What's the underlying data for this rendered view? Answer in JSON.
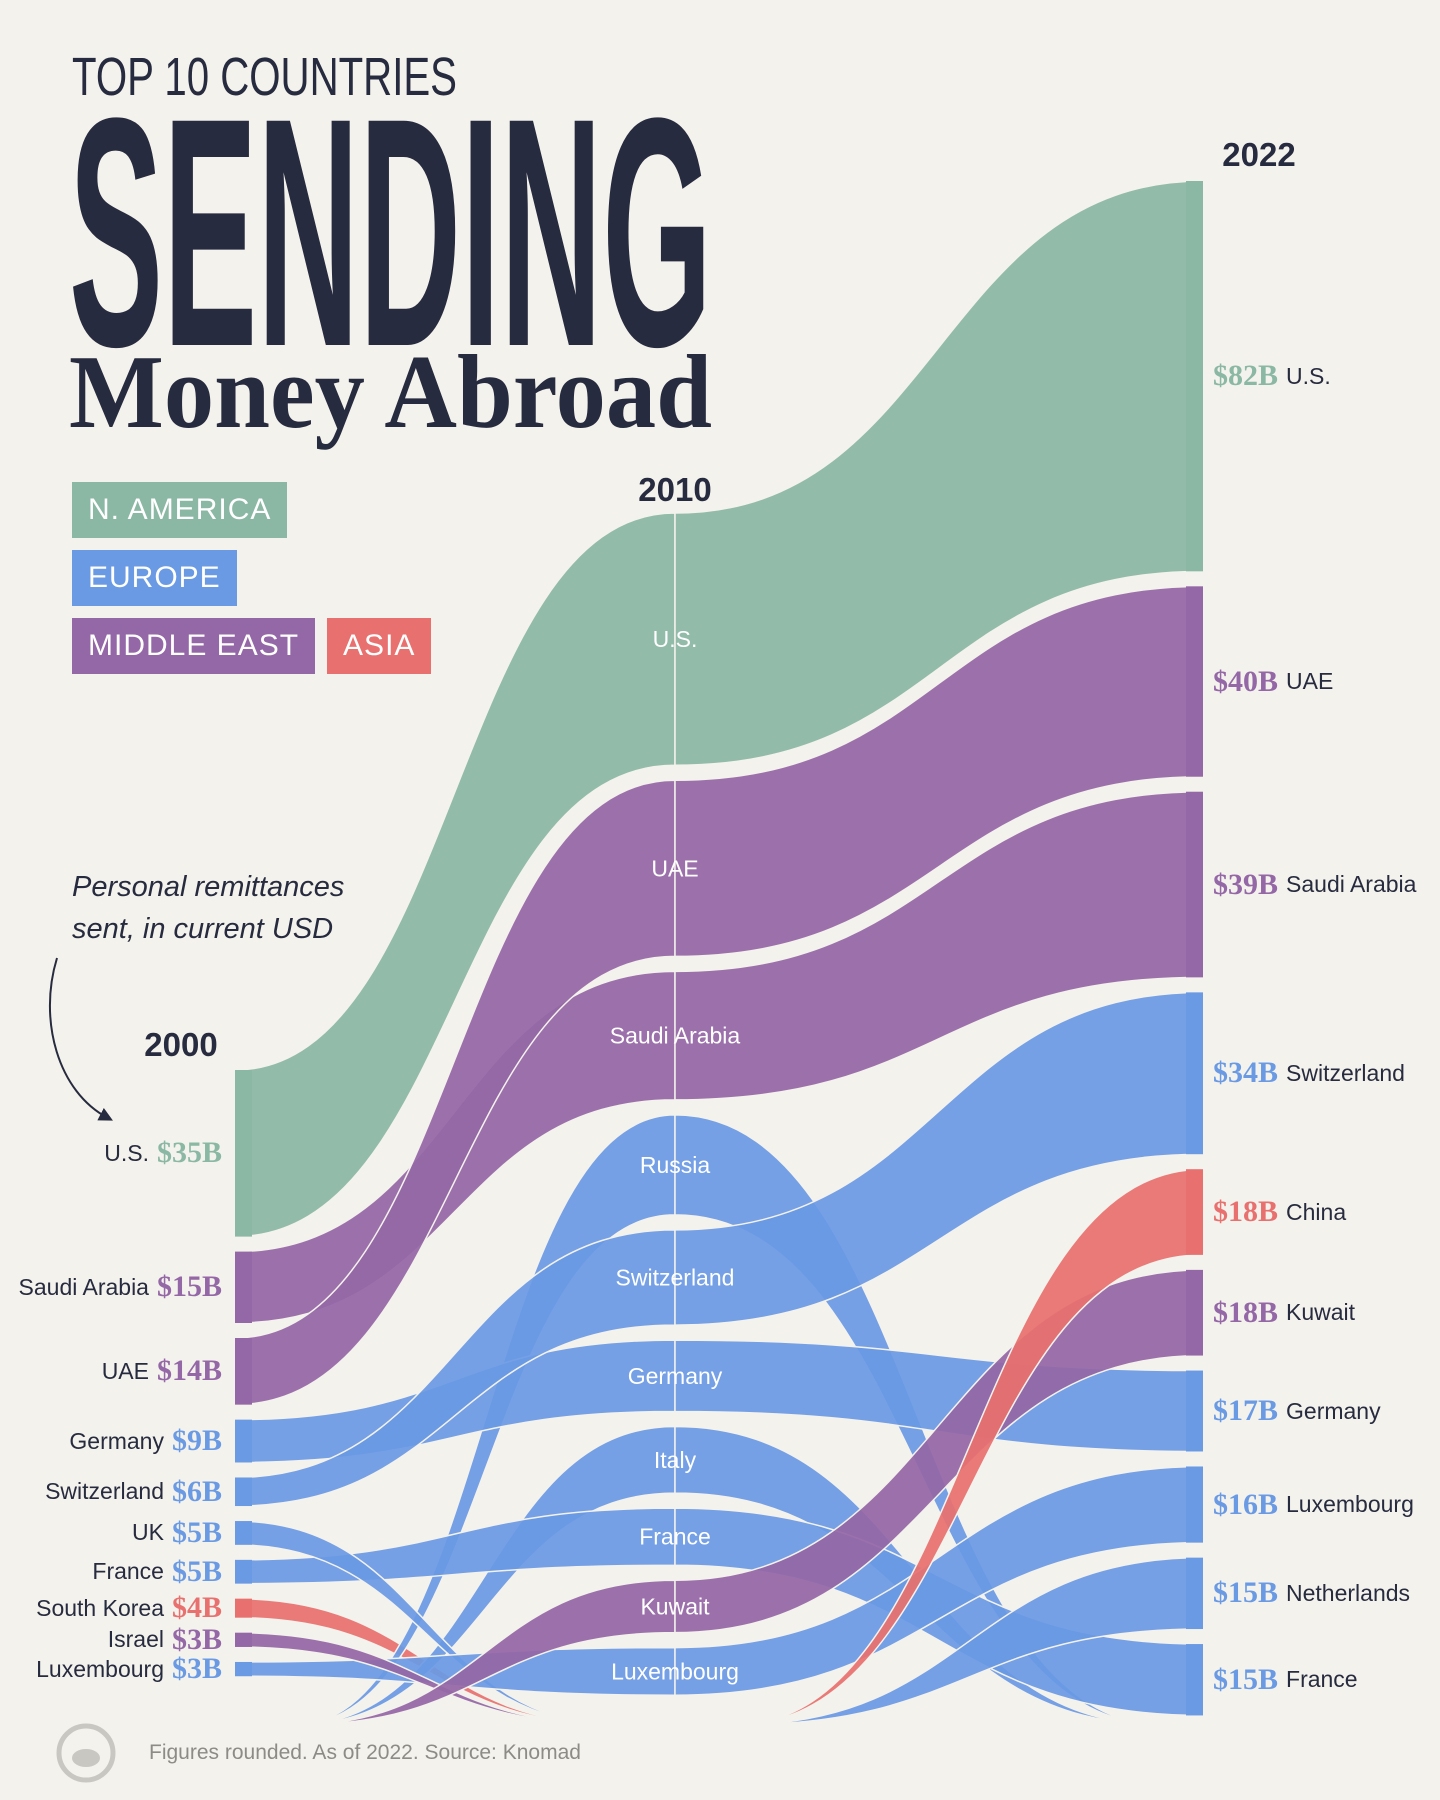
{
  "chart_data": {
    "type": "flow",
    "kicker": "TOP 10 COUNTRIES",
    "title": "SENDING",
    "subtitle": "Money Abroad",
    "annotation": "Personal remittances sent, in current USD",
    "source": "Figures rounded. As of 2022. Source: Knomad",
    "x": [
      "2000",
      "2010",
      "2022"
    ],
    "legend": [
      {
        "name": "N. AMERICA",
        "color": "#8ab8a4"
      },
      {
        "name": "EUROPE",
        "color": "#6a9ae4"
      },
      {
        "name": "MIDDLE EAST",
        "color": "#9467a6"
      },
      {
        "name": "ASIA",
        "color": "#e8716f"
      }
    ],
    "series": [
      {
        "name": "U.S.",
        "color": "#8ab8a4",
        "values": [
          35,
          53,
          82
        ],
        "value_labels": [
          "$35B",
          null,
          "$82B"
        ]
      },
      {
        "name": "UAE",
        "color": "#9467a6",
        "values": [
          14,
          37,
          40
        ],
        "value_labels": [
          "$14B",
          null,
          "$40B"
        ]
      },
      {
        "name": "Saudi Arabia",
        "color": "#9467a6",
        "values": [
          15,
          27,
          39
        ],
        "value_labels": [
          "$15B",
          null,
          "$39B"
        ]
      },
      {
        "name": "Switzerland",
        "color": "#6a9ae4",
        "values": [
          6,
          20,
          34
        ],
        "value_labels": [
          "$6B",
          null,
          "$34B"
        ]
      },
      {
        "name": "China",
        "color": "#e8716f",
        "values": [
          null,
          null,
          18
        ],
        "value_labels": [
          null,
          null,
          "$18B"
        ]
      },
      {
        "name": "Kuwait",
        "color": "#9467a6",
        "values": [
          null,
          11,
          18
        ],
        "value_labels": [
          null,
          null,
          "$18B"
        ]
      },
      {
        "name": "Germany",
        "color": "#6a9ae4",
        "values": [
          9,
          15,
          17
        ],
        "value_labels": [
          "$9B",
          null,
          "$17B"
        ]
      },
      {
        "name": "Israel",
        "color": "#9467a6",
        "values": [
          3,
          null,
          null
        ],
        "value_labels": [
          "$3B",
          null,
          null
        ]
      },
      {
        "name": "Luxembourg",
        "color": "#6a9ae4",
        "values": [
          3,
          10,
          16
        ],
        "value_labels": [
          "$3B",
          null,
          "$16B"
        ]
      },
      {
        "name": "Netherlands",
        "color": "#6a9ae4",
        "values": [
          null,
          null,
          15
        ],
        "value_labels": [
          null,
          null,
          "$15B"
        ]
      },
      {
        "name": "UK",
        "color": "#6a9ae4",
        "values": [
          5,
          null,
          null
        ],
        "value_labels": [
          "$5B",
          null,
          null
        ]
      },
      {
        "name": "France",
        "color": "#6a9ae4",
        "values": [
          5,
          12,
          15
        ],
        "value_labels": [
          "$5B",
          null,
          "$15B"
        ]
      },
      {
        "name": "Russia",
        "color": "#6a9ae4",
        "values": [
          null,
          21,
          null
        ],
        "value_labels": [
          null,
          null,
          null
        ]
      },
      {
        "name": "Italy",
        "color": "#6a9ae4",
        "values": [
          null,
          14,
          null
        ],
        "value_labels": [
          null,
          null,
          null
        ]
      },
      {
        "name": "South Korea",
        "color": "#e8716f",
        "values": [
          4,
          null,
          null
        ],
        "value_labels": [
          "$4B",
          null,
          null
        ]
      }
    ]
  }
}
